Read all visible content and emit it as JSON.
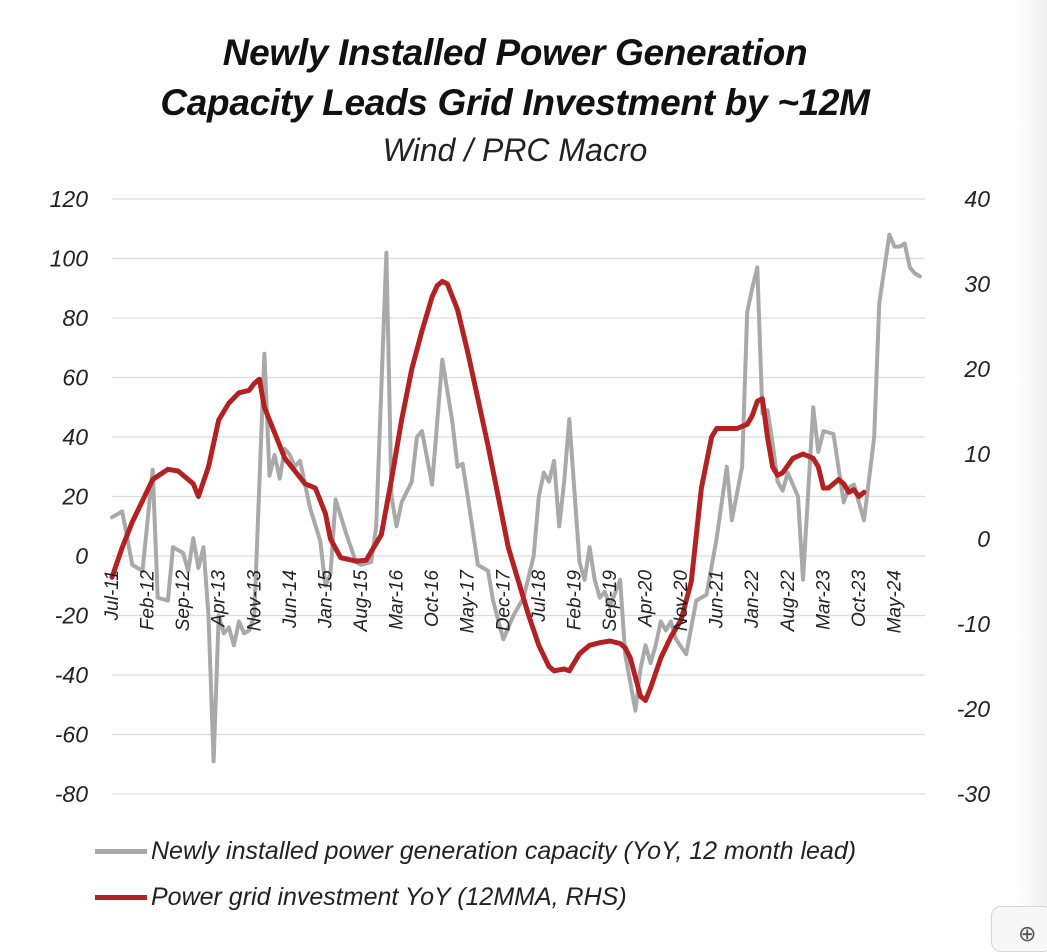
{
  "title_line1": "Newly Installed Power Generation",
  "title_line2": "Capacity Leads Grid Investment by ~12M",
  "subtitle": "Wind / PRC Macro",
  "colors": {
    "gray_series": "#a9a9a9",
    "red_series": "#b22222",
    "grid": "#dcdcdc"
  },
  "chart_data": {
    "type": "line",
    "title": "Newly Installed Power Generation Capacity Leads Grid Investment by ~12M",
    "subtitle": "Wind / PRC Macro",
    "x_tick_labels": [
      "Jul-11",
      "Feb-12",
      "Sep-12",
      "Apr-13",
      "Nov-13",
      "Jun-14",
      "Jan-15",
      "Aug-15",
      "Mar-16",
      "Oct-16",
      "May-17",
      "Dec-17",
      "Jul-18",
      "Feb-19",
      "Sep-19",
      "Apr-20",
      "Nov-20",
      "Jun-21",
      "Jan-22",
      "Aug-22",
      "Mar-23",
      "Oct-23",
      "May-24"
    ],
    "ylim_left": [
      -80,
      120
    ],
    "ylim_right": [
      -30,
      40
    ],
    "yticks_left": [
      "120",
      "100",
      "80",
      "60",
      "40",
      "20",
      "0",
      "-20",
      "-40",
      "-60",
      "-80"
    ],
    "yticks_right": [
      "40",
      "30",
      "20",
      "10",
      "0",
      "-10",
      "-20",
      "-30"
    ],
    "grid": true,
    "legend_position": "bottom",
    "series": [
      {
        "name": "Newly installed power generation capacity (YoY, 12 month lead)",
        "axis": "left",
        "points": [
          [
            "Jul-11",
            13
          ],
          [
            "Sep-11",
            15
          ],
          [
            "Nov-11",
            -3
          ],
          [
            "Jan-12",
            -5
          ],
          [
            "Mar-12",
            29
          ],
          [
            "Apr-12",
            -14
          ],
          [
            "Jun-12",
            -15
          ],
          [
            "Jul-12",
            3
          ],
          [
            "Sep-12",
            1
          ],
          [
            "Oct-12",
            -5
          ],
          [
            "Nov-12",
            6
          ],
          [
            "Dec-12",
            -4
          ],
          [
            "Jan-13",
            3
          ],
          [
            "Feb-13",
            -20
          ],
          [
            "Mar-13",
            -69
          ],
          [
            "Apr-13",
            -20
          ],
          [
            "May-13",
            -26
          ],
          [
            "Jun-13",
            -24
          ],
          [
            "Jul-13",
            -30
          ],
          [
            "Aug-13",
            -22
          ],
          [
            "Sep-13",
            -26
          ],
          [
            "Oct-13",
            -25
          ],
          [
            "Nov-13",
            -20
          ],
          [
            "Jan-14",
            68
          ],
          [
            "Feb-14",
            27
          ],
          [
            "Mar-14",
            34
          ],
          [
            "Apr-14",
            26
          ],
          [
            "May-14",
            36
          ],
          [
            "Jun-14",
            34
          ],
          [
            "Jul-14",
            30
          ],
          [
            "Aug-14",
            32
          ],
          [
            "Oct-14",
            16
          ],
          [
            "Dec-14",
            5
          ],
          [
            "Jan-15",
            -10
          ],
          [
            "Feb-15",
            -6
          ],
          [
            "Mar-15",
            19
          ],
          [
            "May-15",
            8
          ],
          [
            "Jul-15",
            -2
          ],
          [
            "Aug-15",
            -3
          ],
          [
            "Oct-15",
            -2
          ],
          [
            "Nov-15",
            10
          ],
          [
            "Jan-16",
            102
          ],
          [
            "Feb-16",
            20
          ],
          [
            "Mar-16",
            10
          ],
          [
            "Apr-16",
            18
          ],
          [
            "Jun-16",
            25
          ],
          [
            "Jul-16",
            40
          ],
          [
            "Aug-16",
            42
          ],
          [
            "Oct-16",
            24
          ],
          [
            "Dec-16",
            66
          ],
          [
            "Feb-17",
            45
          ],
          [
            "Mar-17",
            30
          ],
          [
            "Apr-17",
            31
          ],
          [
            "May-17",
            20
          ],
          [
            "Jul-17",
            -3
          ],
          [
            "Sep-17",
            -5
          ],
          [
            "Oct-17",
            -15
          ],
          [
            "Dec-17",
            -28
          ],
          [
            "Feb-18",
            -20
          ],
          [
            "Apr-18",
            -14
          ],
          [
            "Jun-18",
            0
          ],
          [
            "Jul-18",
            20
          ],
          [
            "Aug-18",
            28
          ],
          [
            "Sep-18",
            25
          ],
          [
            "Oct-18",
            32
          ],
          [
            "Nov-18",
            10
          ],
          [
            "Dec-18",
            25
          ],
          [
            "Jan-19",
            46
          ],
          [
            "Mar-19",
            -2
          ],
          [
            "Apr-19",
            -8
          ],
          [
            "May-19",
            3
          ],
          [
            "Jun-19",
            -8
          ],
          [
            "Jul-19",
            -14
          ],
          [
            "Aug-19",
            -12
          ],
          [
            "Sep-19",
            -17
          ],
          [
            "Nov-19",
            -8
          ],
          [
            "Dec-19",
            -33
          ],
          [
            "Feb-20",
            -52
          ],
          [
            "Mar-20",
            -38
          ],
          [
            "Apr-20",
            -30
          ],
          [
            "May-20",
            -36
          ],
          [
            "Jun-20",
            -30
          ],
          [
            "Jul-20",
            -22
          ],
          [
            "Aug-20",
            -25
          ],
          [
            "Sep-20",
            -22
          ],
          [
            "Oct-20",
            -28
          ],
          [
            "Dec-20",
            -33
          ],
          [
            "Feb-21",
            -15
          ],
          [
            "Apr-21",
            -13
          ],
          [
            "Jun-21",
            6
          ],
          [
            "Aug-21",
            30
          ],
          [
            "Sep-21",
            12
          ],
          [
            "Nov-21",
            30
          ],
          [
            "Dec-21",
            82
          ],
          [
            "Jan-22",
            90
          ],
          [
            "Feb-22",
            97
          ],
          [
            "Mar-22",
            48
          ],
          [
            "Apr-22",
            49
          ],
          [
            "May-22",
            38
          ],
          [
            "Jun-22",
            25
          ],
          [
            "Jul-22",
            22
          ],
          [
            "Aug-22",
            28
          ],
          [
            "Oct-22",
            20
          ],
          [
            "Nov-22",
            -8
          ],
          [
            "Jan-23",
            50
          ],
          [
            "Feb-23",
            35
          ],
          [
            "Mar-23",
            42
          ],
          [
            "May-23",
            41
          ],
          [
            "Jul-23",
            18
          ],
          [
            "Aug-23",
            23
          ],
          [
            "Sep-23",
            24
          ],
          [
            "Oct-23",
            18
          ],
          [
            "Nov-23",
            12
          ],
          [
            "Jan-24",
            40
          ],
          [
            "Feb-24",
            85
          ],
          [
            "Apr-24",
            108
          ],
          [
            "May-24",
            104
          ],
          [
            "Jun-24",
            104
          ],
          [
            "Jul-24",
            105
          ],
          [
            "Aug-24",
            97
          ],
          [
            "Sep-24",
            95
          ],
          [
            "Oct-24",
            94
          ]
        ]
      },
      {
        "name": "Power grid investment YoY (12MMA, RHS)",
        "axis": "right",
        "points": [
          [
            "Jul-11",
            -4.5
          ],
          [
            "Sep-11",
            -1
          ],
          [
            "Nov-11",
            2
          ],
          [
            "Jan-12",
            4.5
          ],
          [
            "Mar-12",
            7
          ],
          [
            "Jun-12",
            8.2
          ],
          [
            "Aug-12",
            8
          ],
          [
            "Oct-12",
            7
          ],
          [
            "Nov-12",
            6.5
          ],
          [
            "Dec-12",
            5
          ],
          [
            "Feb-13",
            8.5
          ],
          [
            "Apr-13",
            14
          ],
          [
            "Jun-13",
            16
          ],
          [
            "Aug-13",
            17.2
          ],
          [
            "Oct-13",
            17.5
          ],
          [
            "Nov-13",
            18.3
          ],
          [
            "Dec-13",
            18.8
          ],
          [
            "Jan-14",
            15.5
          ],
          [
            "Mar-14",
            12.5
          ],
          [
            "May-14",
            9.5
          ],
          [
            "Jul-14",
            8
          ],
          [
            "Sep-14",
            6.5
          ],
          [
            "Nov-14",
            6
          ],
          [
            "Jan-15",
            3
          ],
          [
            "Feb-15",
            0
          ],
          [
            "Apr-15",
            -2.2
          ],
          [
            "Jul-15",
            -2.6
          ],
          [
            "Sep-15",
            -2.5
          ],
          [
            "Oct-15",
            -1.5
          ],
          [
            "Dec-15",
            0.5
          ],
          [
            "Feb-16",
            7
          ],
          [
            "Apr-16",
            14
          ],
          [
            "Jun-16",
            20
          ],
          [
            "Aug-16",
            24.5
          ],
          [
            "Oct-16",
            28.5
          ],
          [
            "Nov-16",
            29.8
          ],
          [
            "Dec-16",
            30.3
          ],
          [
            "Jan-17",
            30
          ],
          [
            "Mar-17",
            27
          ],
          [
            "May-17",
            22
          ],
          [
            "Jul-17",
            16.5
          ],
          [
            "Sep-17",
            11
          ],
          [
            "Nov-17",
            5
          ],
          [
            "Jan-18",
            -1
          ],
          [
            "Mar-18",
            -5
          ],
          [
            "May-18",
            -9
          ],
          [
            "Jul-18",
            -12.5
          ],
          [
            "Sep-18",
            -15
          ],
          [
            "Oct-18",
            -15.5
          ],
          [
            "Dec-18",
            -15.3
          ],
          [
            "Jan-19",
            -15.5
          ],
          [
            "Mar-19",
            -13.5
          ],
          [
            "May-19",
            -12.5
          ],
          [
            "Jul-19",
            -12.2
          ],
          [
            "Sep-19",
            -12
          ],
          [
            "Nov-19",
            -12.3
          ],
          [
            "Dec-19",
            -12.8
          ],
          [
            "Jan-20",
            -14
          ],
          [
            "Mar-20",
            -18.5
          ],
          [
            "Apr-20",
            -19
          ],
          [
            "May-20",
            -17.5
          ],
          [
            "Jul-20",
            -14
          ],
          [
            "Sep-20",
            -11.5
          ],
          [
            "Nov-20",
            -9.5
          ],
          [
            "Jan-21",
            -5
          ],
          [
            "Mar-21",
            6
          ],
          [
            "May-21",
            12
          ],
          [
            "Jun-21",
            13
          ],
          [
            "Aug-21",
            13
          ],
          [
            "Oct-21",
            13
          ],
          [
            "Dec-21",
            13.5
          ],
          [
            "Jan-22",
            14.5
          ],
          [
            "Feb-22",
            16.2
          ],
          [
            "Mar-22",
            16.5
          ],
          [
            "Apr-22",
            12
          ],
          [
            "May-22",
            8.5
          ],
          [
            "Jun-22",
            7.5
          ],
          [
            "Jul-22",
            7.8
          ],
          [
            "Sep-22",
            9.5
          ],
          [
            "Nov-22",
            10
          ],
          [
            "Jan-23",
            9.5
          ],
          [
            "Feb-23",
            8.5
          ],
          [
            "Mar-23",
            6
          ],
          [
            "Apr-23",
            6
          ],
          [
            "Jun-23",
            7
          ],
          [
            "Jul-23",
            6.5
          ],
          [
            "Aug-23",
            5.5
          ],
          [
            "Sep-23",
            5.8
          ],
          [
            "Oct-23",
            5
          ],
          [
            "Nov-23",
            5.5
          ]
        ]
      }
    ]
  }
}
